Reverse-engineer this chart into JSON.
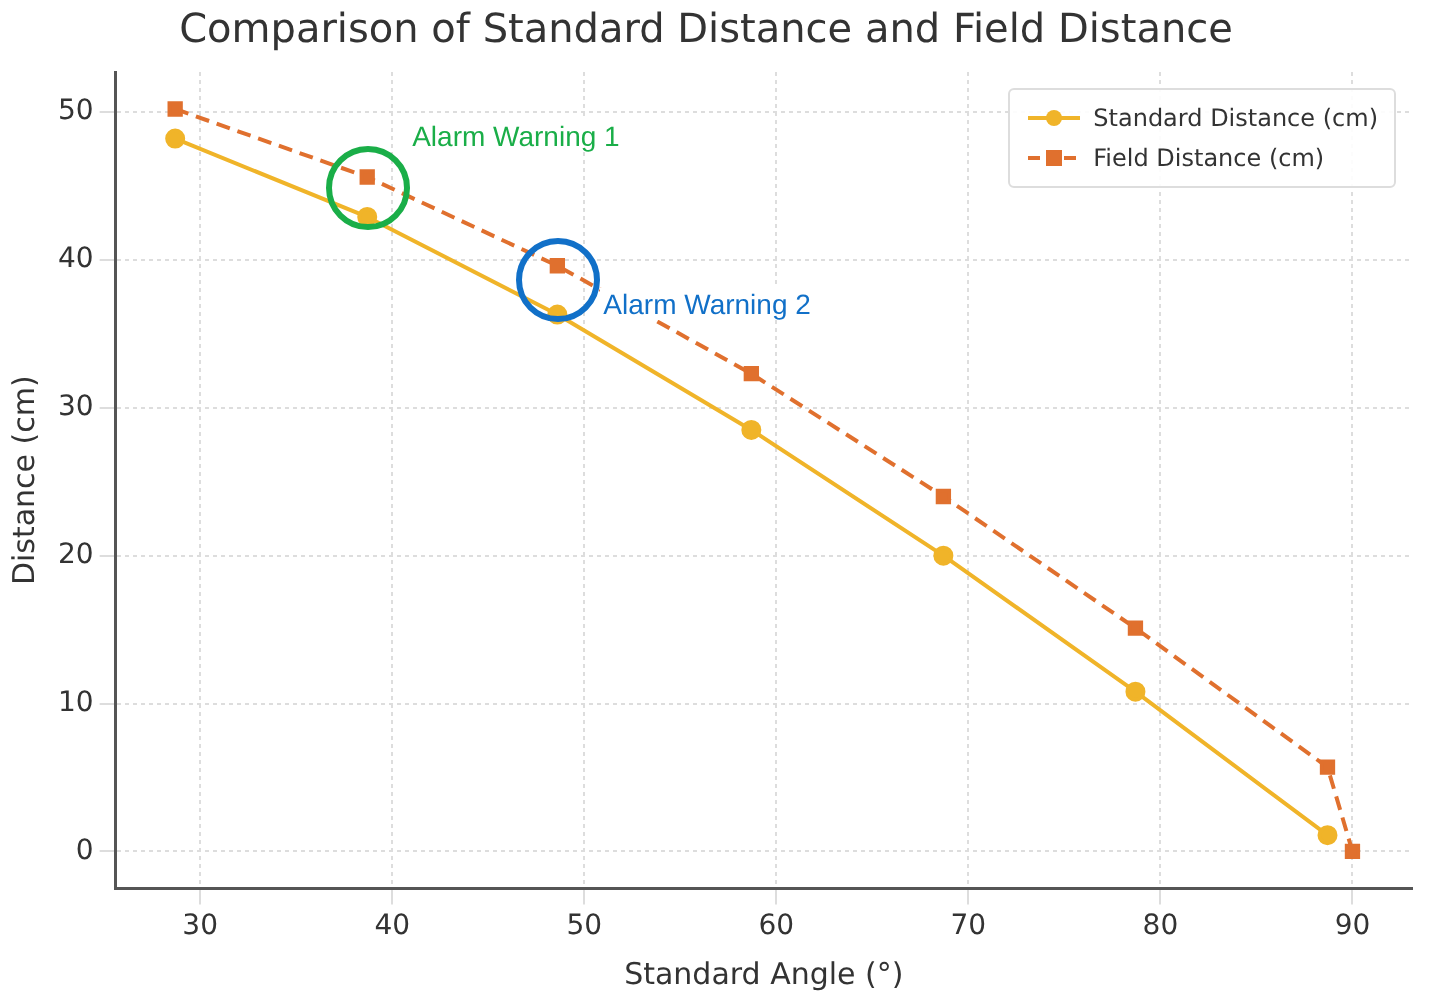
{
  "chart_data": {
    "type": "line",
    "title": "Comparison of Standard Distance and Field Distance",
    "xlabel": "Standard Angle (°)",
    "ylabel": "Distance (cm)",
    "series": [
      {
        "name": "Standard Distance (cm)",
        "color": "#f0b429",
        "x": [
          28.7,
          38.7,
          48.6,
          58.7,
          68.7,
          78.7,
          88.7
        ],
        "values": [
          48.2,
          42.9,
          36.3,
          28.5,
          20.0,
          10.8,
          1.1
        ],
        "marker": "circle",
        "line_style": "solid"
      },
      {
        "name": "Field Distance (cm)",
        "color": "#e0702e",
        "x": [
          28.7,
          38.7,
          48.6,
          58.7,
          68.7,
          78.7,
          88.7,
          90.0
        ],
        "values": [
          50.2,
          45.6,
          39.6,
          32.3,
          24.0,
          15.1,
          5.7,
          0
        ],
        "marker": "square",
        "line_style": "dashed"
      }
    ],
    "xlim": [
      25.6,
      93.1
    ],
    "xticks": [
      30,
      40,
      50,
      60,
      70,
      80,
      90
    ],
    "ylim": [
      -2.5,
      52.7
    ],
    "yticks": [
      0,
      10,
      20,
      30,
      40,
      50
    ],
    "grid": true,
    "legend": "top right",
    "annotations": [
      {
        "text": "Alarm Warning 1",
        "x": 38.75,
        "y": 44.8
      },
      {
        "text": "Alarm Warning 2",
        "x": 48.6,
        "y": 38.7
      }
    ]
  }
}
